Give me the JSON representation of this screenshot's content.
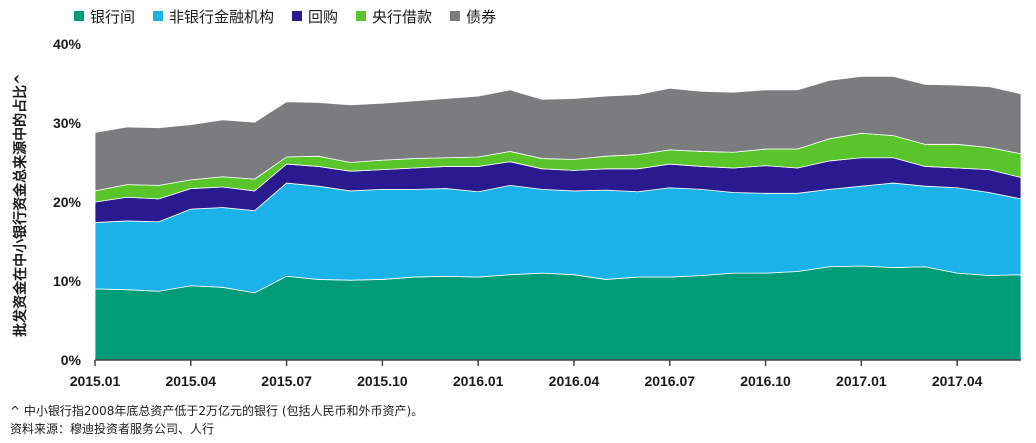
{
  "chart_data": {
    "type": "area",
    "stacked": true,
    "ylabel": "批发资金在中小银行资金总来源中的占比^",
    "ylim": [
      0,
      40
    ],
    "yticks": [
      "0%",
      "10%",
      "20%",
      "30%",
      "40%"
    ],
    "yticks_values": [
      0,
      10,
      20,
      30,
      40
    ],
    "x_dates": [
      "2015.01",
      "2015.02",
      "2015.03",
      "2015.04",
      "2015.05",
      "2015.06",
      "2015.07",
      "2015.08",
      "2015.09",
      "2015.10",
      "2015.11",
      "2015.12",
      "2016.01",
      "2016.02",
      "2016.03",
      "2016.04",
      "2016.05",
      "2016.06",
      "2016.07",
      "2016.08",
      "2016.09",
      "2016.10",
      "2016.11",
      "2016.12",
      "2017.01",
      "2017.02",
      "2017.03",
      "2017.04",
      "2017.05",
      "2017.06"
    ],
    "xtick_labels": [
      "2015.01",
      "2015.04",
      "2015.07",
      "2015.10",
      "2016.01",
      "2016.04",
      "2016.07",
      "2016.10",
      "2017.01",
      "2017.04"
    ],
    "legend_position": "top-left",
    "grid": false,
    "series": [
      {
        "name": "银行间",
        "color": "#009b77",
        "values": [
          9.0,
          8.9,
          8.7,
          9.4,
          9.2,
          8.5,
          10.6,
          10.2,
          10.1,
          10.2,
          10.5,
          10.6,
          10.5,
          10.8,
          11.0,
          10.8,
          10.2,
          10.5,
          10.5,
          10.7,
          11.0,
          11.0,
          11.2,
          11.8,
          11.9,
          11.7,
          11.8,
          11.0,
          10.7,
          10.8
        ]
      },
      {
        "name": "非银行金融机构",
        "color": "#1ab2e8",
        "values": [
          8.4,
          8.7,
          8.8,
          9.7,
          10.1,
          10.4,
          11.8,
          11.8,
          11.3,
          11.4,
          11.1,
          11.1,
          10.8,
          11.3,
          10.6,
          10.6,
          11.3,
          10.8,
          11.3,
          10.9,
          10.2,
          10.1,
          9.9,
          9.8,
          10.1,
          10.7,
          10.2,
          10.8,
          10.5,
          9.6
        ]
      },
      {
        "name": "回购",
        "color": "#2a1a8f",
        "values": [
          2.6,
          3.0,
          2.9,
          2.6,
          2.6,
          2.5,
          2.4,
          2.5,
          2.5,
          2.5,
          2.7,
          2.8,
          3.2,
          3.0,
          2.6,
          2.6,
          2.7,
          2.9,
          3.0,
          2.9,
          3.1,
          3.5,
          3.2,
          3.6,
          3.6,
          3.2,
          2.5,
          2.5,
          2.9,
          2.7
        ]
      },
      {
        "name": "央行借款",
        "color": "#5ac52b",
        "values": [
          1.4,
          1.6,
          1.7,
          1.1,
          1.3,
          1.5,
          0.9,
          1.3,
          1.1,
          1.2,
          1.2,
          1.1,
          1.2,
          1.3,
          1.3,
          1.4,
          1.6,
          1.8,
          1.8,
          1.9,
          2.0,
          2.1,
          2.4,
          2.8,
          3.1,
          2.8,
          2.8,
          3.0,
          2.8,
          3.0
        ]
      },
      {
        "name": "债券",
        "color": "#7a7c7e",
        "values": [
          7.4,
          7.3,
          7.3,
          7.0,
          7.2,
          7.2,
          7.0,
          6.8,
          7.3,
          7.2,
          7.3,
          7.5,
          7.7,
          7.8,
          7.5,
          7.7,
          7.6,
          7.6,
          7.8,
          7.6,
          7.6,
          7.5,
          7.5,
          7.4,
          7.2,
          7.5,
          7.6,
          7.5,
          7.7,
          7.6
        ]
      }
    ]
  },
  "note": "^ 中小银行指2008年底总资产低于2万亿元的银行 (包括人民币和外币资产)。",
  "source": "资料来源：穆迪投资者服务公司、人行"
}
